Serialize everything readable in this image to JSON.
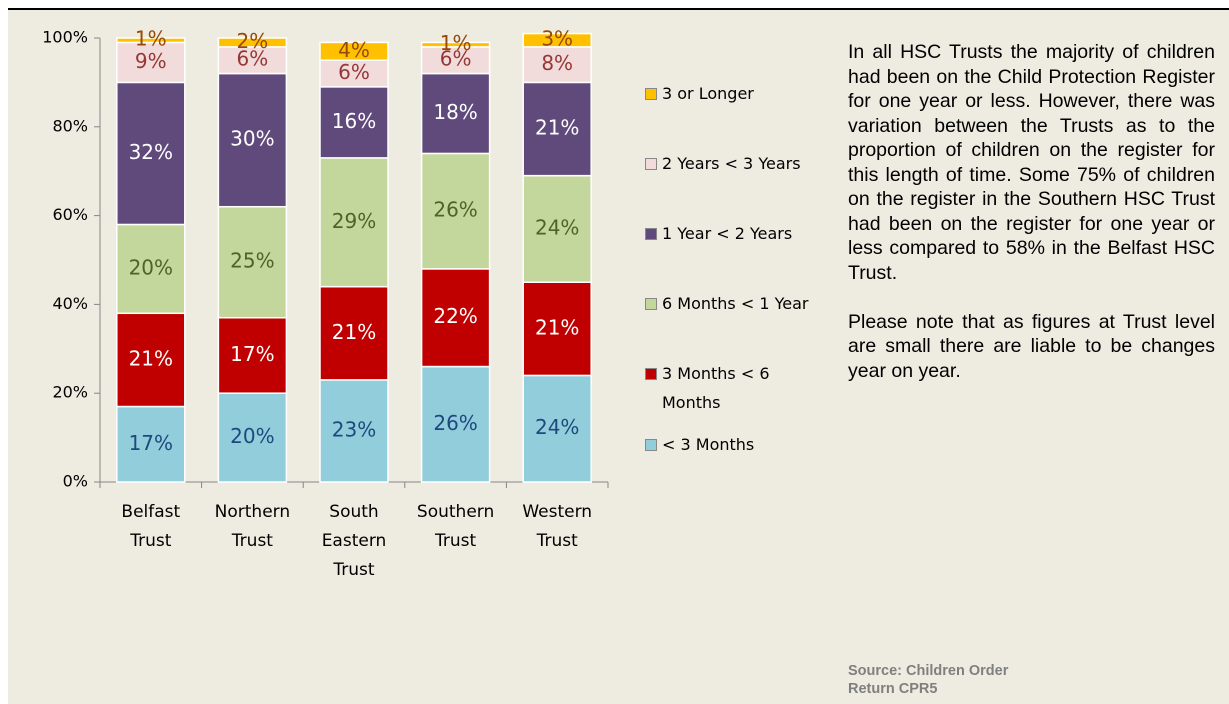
{
  "chart_data": {
    "type": "stacked_bar",
    "categories": [
      "Belfast Trust",
      "Northern Trust",
      "South Eastern Trust",
      "Southern Trust",
      "Western Trust"
    ],
    "series": [
      {
        "name": "< 3 Months",
        "color": "#92cddc",
        "values": [
          17,
          20,
          23,
          26,
          24
        ],
        "value_labels": [
          "17%",
          "20%",
          "23%",
          "26%",
          "24%"
        ]
      },
      {
        "name": "3 Months < 6 Months",
        "color": "#c00000",
        "values": [
          21,
          17,
          21,
          22,
          21
        ],
        "value_labels": [
          "21%",
          "17%",
          "21%",
          "22%",
          "21%"
        ]
      },
      {
        "name": "6 Months < 1 Year",
        "color": "#c3d69b",
        "values": [
          20,
          25,
          29,
          26,
          24
        ],
        "value_labels": [
          "20%",
          "25%",
          "29%",
          "26%",
          "24%"
        ]
      },
      {
        "name": "1 Year < 2 Years",
        "color": "#604a7b",
        "values": [
          32,
          30,
          16,
          18,
          21
        ],
        "value_labels": [
          "32%",
          "30%",
          "16%",
          "18%",
          "21%"
        ]
      },
      {
        "name": "2 Years < 3 Years",
        "color": "#f2dcdb",
        "values": [
          9,
          6,
          6,
          6,
          8
        ],
        "value_labels": [
          "9%",
          "6%",
          "6%",
          "6%",
          "8%"
        ]
      },
      {
        "name": "3 or Longer",
        "color": "#ffc000",
        "values": [
          1,
          2,
          4,
          1,
          3
        ],
        "value_labels": [
          "1%",
          "2%",
          "4%",
          "1%",
          "3%"
        ]
      }
    ],
    "ylim": [
      0,
      100
    ],
    "yticks": [
      {
        "value": 0,
        "label": "0%"
      },
      {
        "value": 20,
        "label": "20%"
      },
      {
        "value": 40,
        "label": "40%"
      },
      {
        "value": 60,
        "label": "60%"
      },
      {
        "value": 80,
        "label": "80%"
      },
      {
        "value": 100,
        "label": "100%"
      }
    ],
    "legend": "right"
  },
  "notes": {
    "paragraphs": [
      "In all HSC Trusts the majority of children had been on the Child Protection Register for one year or less. However, there was variation between the Trusts as to the proportion of children on the register for this length of time. Some 75% of children on the register in the Southern HSC Trust had been on the register for one year or less compared to 58% in the Belfast HSC Trust.",
      "Please note that as figures at Trust level are small there are liable to be changes year on year."
    ],
    "source": "Source: Children Order Return CPR5"
  }
}
